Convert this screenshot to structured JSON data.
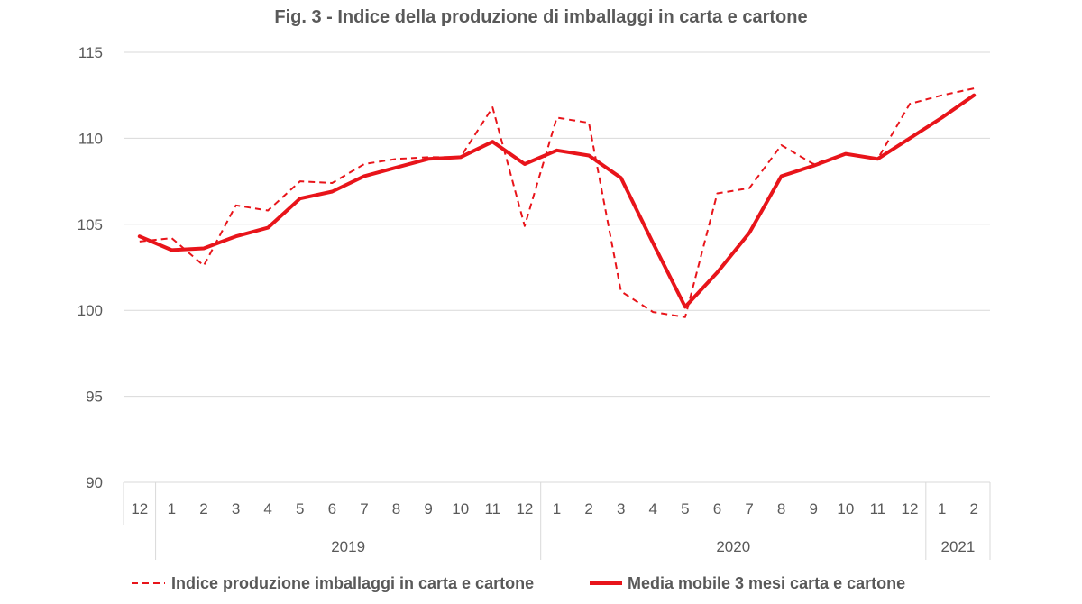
{
  "chart_data": {
    "type": "line",
    "title": "Fig. 3 - Indice della produzione di imballaggi in carta e cartone",
    "xlabel": "",
    "ylabel": "",
    "ylim": [
      90,
      115
    ],
    "yticks": [
      "90",
      "95",
      "100",
      "105",
      "110",
      "115"
    ],
    "grid": true,
    "legend_position": "bottom",
    "categories": [
      "12",
      "1",
      "2",
      "3",
      "4",
      "5",
      "6",
      "7",
      "8",
      "9",
      "10",
      "11",
      "12",
      "1",
      "2",
      "3",
      "4",
      "5",
      "6",
      "7",
      "8",
      "9",
      "10",
      "11",
      "12",
      "1",
      "2"
    ],
    "year_groups": [
      {
        "label": "",
        "start": 0,
        "end": 0
      },
      {
        "label": "2019",
        "start": 1,
        "end": 12
      },
      {
        "label": "2020",
        "start": 13,
        "end": 24
      },
      {
        "label": "2021",
        "start": 25,
        "end": 26
      }
    ],
    "series": [
      {
        "name": "Indice produzione imballaggi in carta e cartone",
        "style": "dashed",
        "color": "#e8141a",
        "values": [
          104.0,
          104.2,
          102.6,
          106.1,
          105.8,
          107.5,
          107.4,
          108.5,
          108.8,
          108.9,
          108.9,
          111.8,
          104.9,
          111.2,
          110.9,
          101.1,
          99.9,
          99.6,
          106.8,
          107.1,
          109.6,
          108.5,
          109.1,
          108.8,
          112.0,
          112.5,
          112.9
        ]
      },
      {
        "name": "Media mobile 3 mesi  carta e cartone",
        "style": "solid",
        "color": "#e8141a",
        "values": [
          104.3,
          103.5,
          103.6,
          104.3,
          104.8,
          106.5,
          106.9,
          107.8,
          108.3,
          108.8,
          108.9,
          109.8,
          108.5,
          109.3,
          109.0,
          107.7,
          103.9,
          100.2,
          102.2,
          104.5,
          107.8,
          108.4,
          109.1,
          108.8,
          110.0,
          111.2,
          112.5
        ]
      }
    ]
  }
}
